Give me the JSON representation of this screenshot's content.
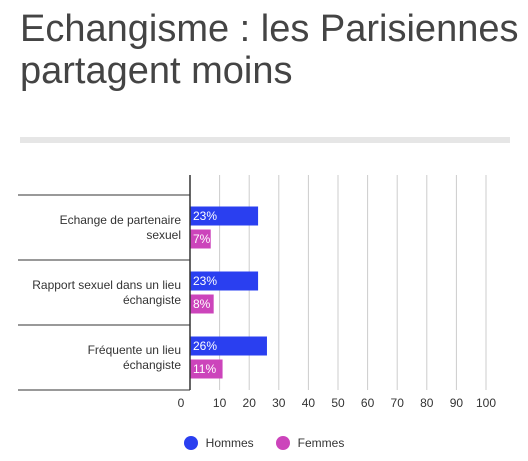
{
  "chart_data": {
    "type": "bar",
    "orientation": "horizontal",
    "title": "Echangisme : les Parisiennes partagent moins",
    "categories": [
      [
        "Echange de partenaire",
        "sexuel"
      ],
      [
        "Rapport sexuel dans un lieu",
        "échangiste"
      ],
      [
        "Fréquente un lieu",
        "échangiste"
      ]
    ],
    "series": [
      {
        "name": "Hommes",
        "color": "#2a3ff0",
        "values": [
          23,
          23,
          26
        ],
        "labels": [
          "23%",
          "23%",
          "26%"
        ]
      },
      {
        "name": "Femmes",
        "color": "#cc44bb",
        "values": [
          7,
          8,
          11
        ],
        "labels": [
          "7%",
          "8%",
          "11%"
        ]
      }
    ],
    "xlim": [
      0,
      100
    ],
    "xticks": [
      "0",
      "10",
      "20",
      "30",
      "40",
      "50",
      "60",
      "70",
      "80",
      "90",
      "100"
    ],
    "grid": true,
    "legend_position": "bottom"
  }
}
